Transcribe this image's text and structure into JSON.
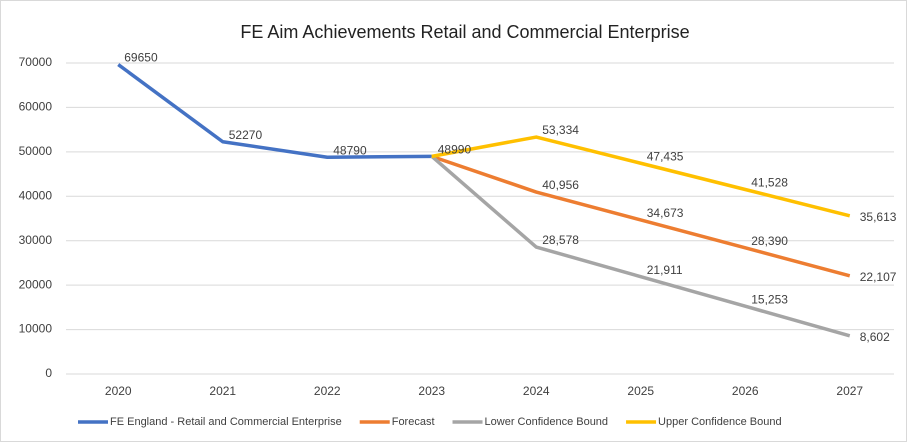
{
  "chart_data": {
    "type": "line",
    "title": "FE Aim Achievements Retail and Commercial Enterprise",
    "categories": [
      "2020",
      "2021",
      "2022",
      "2023",
      "2024",
      "2025",
      "2026",
      "2027"
    ],
    "series": [
      {
        "name": "FE England - Retail and Commercial Enterprise",
        "color": "#4472c4",
        "values": [
          69650,
          52270,
          48790,
          48990,
          null,
          null,
          null,
          null
        ]
      },
      {
        "name": "Forecast",
        "color": "#ed7d31",
        "values": [
          null,
          null,
          null,
          48990,
          40956,
          34673,
          28390,
          22107
        ],
        "value_labels": [
          null,
          null,
          null,
          null,
          "40,956",
          "34,673",
          "28,390",
          "22,107"
        ]
      },
      {
        "name": "Lower Confidence Bound",
        "color": "#a5a5a5",
        "values": [
          null,
          null,
          null,
          48990,
          28578,
          21911,
          15253,
          8602
        ],
        "value_labels": [
          null,
          null,
          null,
          null,
          "28,578",
          "21,911",
          "15,253",
          "8,602"
        ]
      },
      {
        "name": "Upper Confidence Bound",
        "color": "#ffc000",
        "values": [
          null,
          null,
          null,
          48990,
          53334,
          47435,
          41528,
          35613
        ],
        "value_labels": [
          null,
          null,
          null,
          null,
          "53,334",
          "47,435",
          "41,528",
          "35,613"
        ]
      }
    ],
    "ylim": [
      0,
      70000
    ],
    "yticks": [
      0,
      10000,
      20000,
      30000,
      40000,
      50000,
      60000,
      70000
    ],
    "grid": true,
    "legend": "bottom"
  }
}
